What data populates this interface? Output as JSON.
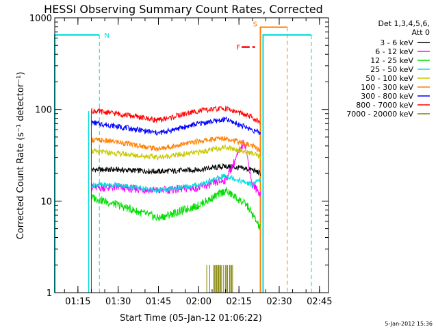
{
  "chart_data": {
    "type": "line",
    "title": "HESSI Observing Summary Count Rates, Corrected",
    "xlabel": "Start Time (05-Jan-12 01:06:22)",
    "ylabel": "Corrected Count Rate (s⁻¹ detector⁻¹)",
    "yscale": "log",
    "ylim": [
      1,
      1000
    ],
    "xlim_minutes_after_start": [
      0,
      102
    ],
    "x_tick_labels": [
      "01:15",
      "01:30",
      "01:45",
      "02:00",
      "02:15",
      "02:30",
      "02:45"
    ],
    "y_tick_labels": [
      "1",
      "10",
      "100",
      "1000"
    ],
    "grid": false,
    "legend": {
      "placement": "right",
      "header": [
        "Det 1,3,4,5,6,",
        "Att 0"
      ]
    },
    "series": [
      {
        "name": "3 - 6 keV",
        "color": "#000000",
        "x": [
          "01:20",
          "01:30",
          "01:45",
          "02:00",
          "02:10",
          "02:20",
          "02:23"
        ],
        "values": [
          22,
          22,
          21,
          22,
          24,
          22,
          20
        ]
      },
      {
        "name": "6 - 12 keV",
        "color": "#ff00ff",
        "x": [
          "01:20",
          "01:30",
          "01:45",
          "02:00",
          "02:10",
          "02:17",
          "02:20",
          "02:23"
        ],
        "values": [
          14,
          14,
          13,
          14,
          17,
          45,
          15,
          12
        ]
      },
      {
        "name": "12 - 25 keV",
        "color": "#00dd00",
        "x": [
          "01:20",
          "01:30",
          "01:45",
          "02:00",
          "02:10",
          "02:18",
          "02:23"
        ],
        "values": [
          11,
          9,
          6.5,
          9,
          13,
          9,
          5
        ]
      },
      {
        "name": "25 - 50 keV",
        "color": "#00dddd",
        "x": [
          "01:20",
          "01:30",
          "01:45",
          "02:00",
          "02:10",
          "02:20",
          "02:23"
        ],
        "values": [
          15,
          15,
          13,
          15,
          19,
          15,
          17
        ]
      },
      {
        "name": "50 - 100 keV",
        "color": "#c8c800",
        "x": [
          "01:20",
          "01:30",
          "01:45",
          "02:00",
          "02:10",
          "02:20",
          "02:23"
        ],
        "values": [
          35,
          33,
          30,
          34,
          39,
          33,
          30
        ]
      },
      {
        "name": "100 - 300 keV",
        "color": "#ff7f00",
        "x": [
          "01:20",
          "01:30",
          "01:45",
          "02:00",
          "02:10",
          "02:20",
          "02:23"
        ],
        "values": [
          47,
          44,
          37,
          45,
          49,
          40,
          35
        ]
      },
      {
        "name": "300 - 800 keV",
        "color": "#0000ff",
        "x": [
          "01:20",
          "01:30",
          "01:45",
          "02:00",
          "02:10",
          "02:20",
          "02:23"
        ],
        "values": [
          72,
          65,
          55,
          70,
          78,
          60,
          55
        ]
      },
      {
        "name": "800 - 7000 keV",
        "color": "#ff0000",
        "x": [
          "01:20",
          "01:30",
          "01:45",
          "02:00",
          "02:10",
          "02:20",
          "02:23"
        ],
        "values": [
          97,
          90,
          76,
          97,
          103,
          82,
          70
        ]
      },
      {
        "name": "7000 - 20000 keV",
        "color": "#808000",
        "x": [
          "02:03",
          "02:05",
          "02:07",
          "02:09",
          "02:11",
          "02:13"
        ],
        "values": [
          2,
          2,
          2,
          2,
          2,
          2
        ]
      }
    ],
    "flags": [
      {
        "label": "N",
        "color": "#00dddd"
      },
      {
        "label": "S",
        "color": "#ff7f00"
      },
      {
        "label": "F",
        "color": "#ff0000"
      }
    ],
    "timestamp": "5-Jan-2012 15:36"
  }
}
